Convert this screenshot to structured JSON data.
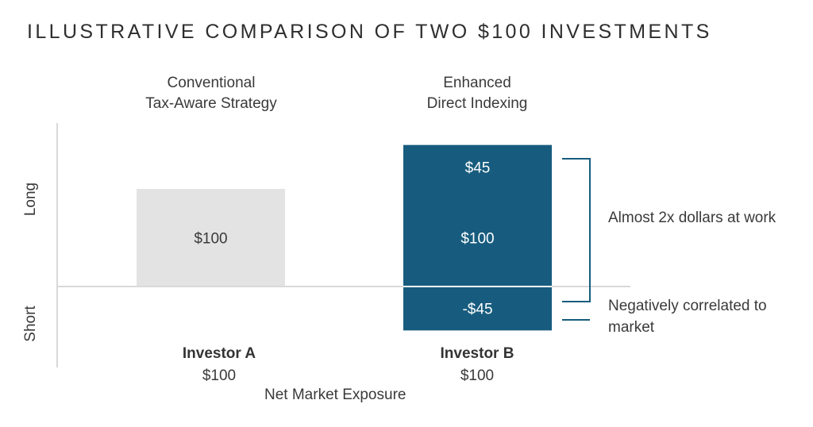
{
  "title": "ILLUSTRATIVE COMPARISON OF TWO $100 INVESTMENTS",
  "colors": {
    "gray_bar": "#e3e3e3",
    "blue_bar": "#175c7e",
    "axis": "#d9d9d9",
    "bracket": "#175c7e",
    "dark_label": "#3a3a3a",
    "light_label": "#ffffff"
  },
  "chart_data": {
    "type": "bar",
    "stacked": true,
    "categories": [
      "Investor A",
      "Investor B"
    ],
    "category_headers": [
      [
        "Conventional",
        "Tax-Aware Strategy"
      ],
      [
        "Enhanced",
        "Direct Indexing"
      ]
    ],
    "net_exposure": [
      "$100",
      "$100"
    ],
    "xlabel": "Net Market Exposure",
    "ylabel_positive": "Long",
    "ylabel_negative": "Short",
    "ylim": [
      -60,
      150
    ],
    "segments": [
      {
        "category": "Investor A",
        "value": 100,
        "label": "$100",
        "color": "gray_bar"
      },
      {
        "category": "Investor B",
        "value": 100,
        "label": "$100",
        "color": "blue_bar"
      },
      {
        "category": "Investor B",
        "value": 45,
        "label": "$45",
        "color": "blue_bar"
      },
      {
        "category": "Investor B",
        "value": -45,
        "label": "-$45",
        "color": "blue_bar"
      }
    ],
    "annotations": [
      "Almost 2x dollars at work",
      "Negatively correlated to market"
    ]
  }
}
